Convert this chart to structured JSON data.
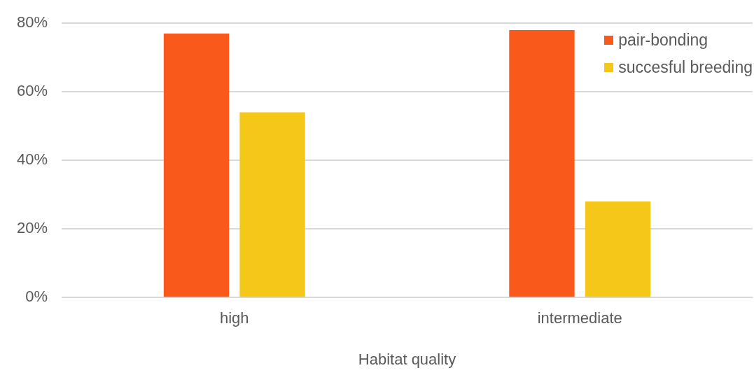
{
  "chart_data": {
    "type": "bar",
    "xlabel": "Habitat quality",
    "categories": [
      "high",
      "intermediate"
    ],
    "series": [
      {
        "name": "pair-bonding",
        "color": "#f95a1c",
        "values": [
          77,
          78
        ]
      },
      {
        "name": "succesful breeding",
        "color": "#f5c718",
        "values": [
          54,
          28
        ]
      }
    ],
    "ylim": [
      0,
      80
    ],
    "yticks": [
      {
        "value": 0,
        "label": "0%"
      },
      {
        "value": 20,
        "label": "20%"
      },
      {
        "value": 40,
        "label": "40%"
      },
      {
        "value": 60,
        "label": "60%"
      },
      {
        "value": 80,
        "label": "80%"
      }
    ],
    "grid": "y",
    "legend": "top right"
  }
}
